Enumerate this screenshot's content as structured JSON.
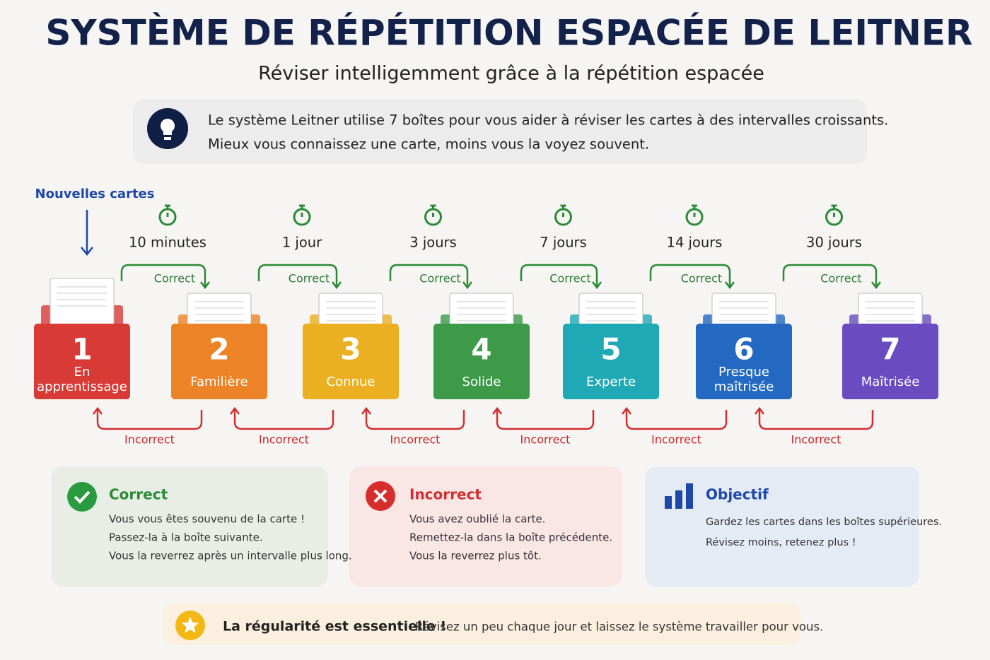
{
  "header": {
    "title": "SYSTÈME DE RÉPÉTITION ESPACÉE DE LEITNER",
    "subtitle": "Réviser intelligemment grâce à la répétition espacée"
  },
  "intro": {
    "lines": [
      "Le système Leitner utilise 7 boîtes pour vous aider à réviser les cartes à des intervalles croissants.",
      "Mieux vous connaissez une carte, moins vous la voyez souvent."
    ]
  },
  "entry_label": "Nouvelles cartes",
  "boxes": [
    {
      "number": 1,
      "label": [
        "En",
        "apprentissage"
      ],
      "color": "#d83a36"
    },
    {
      "number": 2,
      "label": [
        "Familière"
      ],
      "color": "#ec8326"
    },
    {
      "number": 3,
      "label": [
        "Connue"
      ],
      "color": "#ebb021"
    },
    {
      "number": 4,
      "label": [
        "Solide"
      ],
      "color": "#3c9a48"
    },
    {
      "number": 5,
      "label": [
        "Experte"
      ],
      "color": "#1fa9b5"
    },
    {
      "number": 6,
      "label": [
        "Presque",
        "maîtrisée"
      ],
      "color": "#2369c2"
    },
    {
      "number": 7,
      "label": [
        "Maîtrisée"
      ],
      "color": "#6a4cc0"
    }
  ],
  "transitions": [
    {
      "interval": "10 minutes",
      "correct": "Correct",
      "incorrect": "Incorrect"
    },
    {
      "interval": "1 jour",
      "correct": "Correct",
      "incorrect": "Incorrect"
    },
    {
      "interval": "3 jours",
      "correct": "Correct",
      "incorrect": "Incorrect"
    },
    {
      "interval": "7 jours",
      "correct": "Correct",
      "incorrect": "Incorrect"
    },
    {
      "interval": "14 jours",
      "correct": "Correct",
      "incorrect": "Incorrect"
    },
    {
      "interval": "30 jours",
      "correct": "Correct",
      "incorrect": "Incorrect"
    }
  ],
  "cards": [
    {
      "title": "Correct",
      "lines": [
        "Vous vous êtes souvenu de la carte !",
        "Passez-la à la boîte suivante.",
        "Vous la reverrez après un intervalle plus long."
      ]
    },
    {
      "title": "Incorrect",
      "lines": [
        "Vous avez oublié la carte.",
        "Remettez-la dans la boîte précédente.",
        "Vous la reverrez plus tôt."
      ]
    },
    {
      "title": "Objectif",
      "lines": [
        "Gardez les cartes dans les boîtes supérieures.",
        "Révisez moins, retenez plus !"
      ]
    }
  ],
  "footer": {
    "emphasis": "La régularité est essentielle !",
    "text": "Révisez un peu chaque jour et laissez le système travailler pour vous."
  }
}
